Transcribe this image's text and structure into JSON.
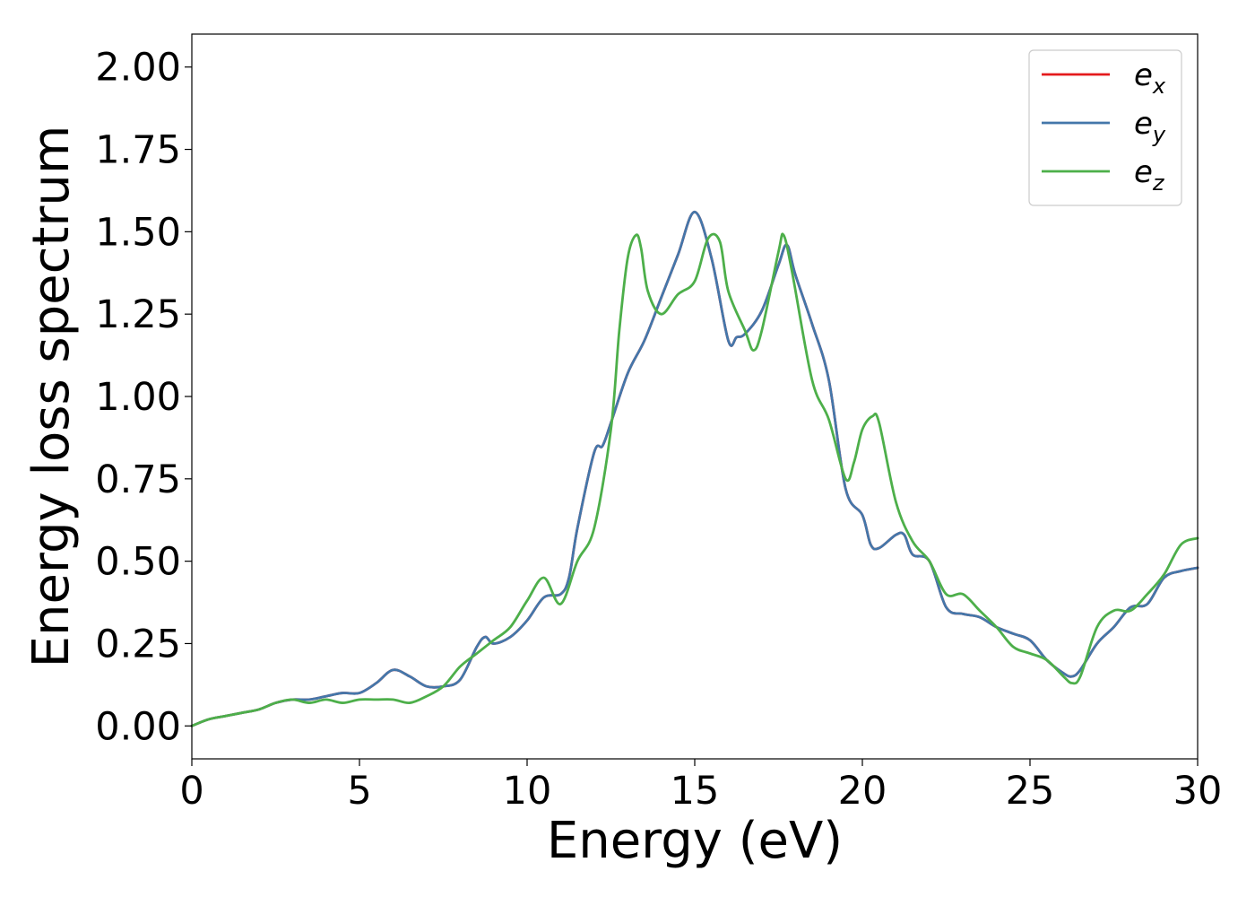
{
  "chart_data": {
    "type": "line",
    "xlabel": "Energy (eV)",
    "ylabel": "Energy loss spectrum",
    "xlim": [
      0,
      30
    ],
    "ylim": [
      -0.1,
      2.1
    ],
    "xticks": [
      0,
      5,
      10,
      15,
      20,
      25,
      30
    ],
    "xtick_labels": [
      "0",
      "5",
      "10",
      "15",
      "20",
      "25",
      "30"
    ],
    "yticks": [
      0,
      0.25,
      0.5,
      0.75,
      1.0,
      1.25,
      1.5,
      1.75,
      2.0
    ],
    "ytick_labels": [
      "0.00",
      "0.25",
      "0.50",
      "0.75",
      "1.00",
      "1.25",
      "1.50",
      "1.75",
      "2.00"
    ],
    "grid": false,
    "legend_position": "top-right",
    "series": [
      {
        "name": "e",
        "sub": "x",
        "color": "#e41a1c",
        "x": [
          0,
          0.5,
          1,
          1.5,
          2,
          2.5,
          3,
          3.5,
          4,
          4.5,
          5,
          5.5,
          6,
          6.5,
          7,
          7.5,
          8,
          8.5,
          8.75,
          9,
          9.5,
          10,
          10.5,
          11,
          11.25,
          11.5,
          12,
          12.25,
          12.5,
          13,
          13.5,
          14,
          14.5,
          15,
          15.5,
          16,
          16.25,
          16.5,
          17,
          17.5,
          17.75,
          18,
          18.5,
          19,
          19.5,
          20,
          20.25,
          20.5,
          21,
          21.25,
          21.5,
          22,
          22.5,
          23,
          23.5,
          24,
          24.5,
          25,
          25.5,
          26,
          26.25,
          26.5,
          27,
          27.5,
          28,
          28.5,
          29,
          29.5,
          30
        ],
        "values": [
          0.0,
          0.02,
          0.03,
          0.04,
          0.05,
          0.07,
          0.08,
          0.08,
          0.09,
          0.1,
          0.1,
          0.13,
          0.17,
          0.15,
          0.12,
          0.12,
          0.14,
          0.24,
          0.27,
          0.25,
          0.27,
          0.32,
          0.39,
          0.4,
          0.45,
          0.6,
          0.83,
          0.85,
          0.92,
          1.07,
          1.17,
          1.3,
          1.43,
          1.56,
          1.42,
          1.17,
          1.18,
          1.19,
          1.26,
          1.4,
          1.46,
          1.37,
          1.22,
          1.05,
          0.72,
          0.64,
          0.55,
          0.54,
          0.58,
          0.58,
          0.52,
          0.5,
          0.36,
          0.34,
          0.33,
          0.3,
          0.28,
          0.26,
          0.2,
          0.16,
          0.15,
          0.17,
          0.25,
          0.3,
          0.36,
          0.37,
          0.45,
          0.47,
          0.48
        ]
      },
      {
        "name": "e",
        "sub": "y",
        "color": "#4477aa",
        "x": [
          0,
          0.5,
          1,
          1.5,
          2,
          2.5,
          3,
          3.5,
          4,
          4.5,
          5,
          5.5,
          6,
          6.5,
          7,
          7.5,
          8,
          8.5,
          8.75,
          9,
          9.5,
          10,
          10.5,
          11,
          11.25,
          11.5,
          12,
          12.25,
          12.5,
          13,
          13.5,
          14,
          14.5,
          15,
          15.5,
          16,
          16.25,
          16.5,
          17,
          17.5,
          17.75,
          18,
          18.5,
          19,
          19.5,
          20,
          20.25,
          20.5,
          21,
          21.25,
          21.5,
          22,
          22.5,
          23,
          23.5,
          24,
          24.5,
          25,
          25.5,
          26,
          26.25,
          26.5,
          27,
          27.5,
          28,
          28.5,
          29,
          29.5,
          30
        ],
        "values": [
          0.0,
          0.02,
          0.03,
          0.04,
          0.05,
          0.07,
          0.08,
          0.08,
          0.09,
          0.1,
          0.1,
          0.13,
          0.17,
          0.15,
          0.12,
          0.12,
          0.14,
          0.24,
          0.27,
          0.25,
          0.27,
          0.32,
          0.39,
          0.4,
          0.45,
          0.6,
          0.83,
          0.85,
          0.92,
          1.07,
          1.17,
          1.3,
          1.43,
          1.56,
          1.42,
          1.17,
          1.18,
          1.19,
          1.26,
          1.4,
          1.46,
          1.37,
          1.22,
          1.05,
          0.72,
          0.64,
          0.55,
          0.54,
          0.58,
          0.58,
          0.52,
          0.5,
          0.36,
          0.34,
          0.33,
          0.3,
          0.28,
          0.26,
          0.2,
          0.16,
          0.15,
          0.17,
          0.25,
          0.3,
          0.36,
          0.37,
          0.45,
          0.47,
          0.48
        ]
      },
      {
        "name": "e",
        "sub": "z",
        "color": "#4daf4a",
        "x": [
          0,
          0.5,
          1,
          1.5,
          2,
          2.5,
          3,
          3.5,
          4,
          4.5,
          5,
          5.5,
          6,
          6.5,
          7,
          7.5,
          8,
          8.5,
          9,
          9.5,
          10,
          10.5,
          11,
          11.5,
          12,
          12.5,
          12.75,
          13,
          13.25,
          13.4,
          13.6,
          14,
          14.5,
          15,
          15.4,
          15.75,
          16,
          16.5,
          16.75,
          17,
          17.5,
          17.65,
          17.9,
          18.5,
          19,
          19.5,
          19.75,
          20,
          20.3,
          20.5,
          21,
          21.5,
          22,
          22.5,
          23,
          23.5,
          24,
          24.5,
          25,
          25.5,
          26,
          26.25,
          26.5,
          27,
          27.5,
          28,
          28.5,
          29,
          29.5,
          30
        ],
        "values": [
          0.0,
          0.02,
          0.03,
          0.04,
          0.05,
          0.07,
          0.08,
          0.07,
          0.08,
          0.07,
          0.08,
          0.08,
          0.08,
          0.07,
          0.09,
          0.12,
          0.18,
          0.22,
          0.26,
          0.3,
          0.38,
          0.45,
          0.37,
          0.5,
          0.6,
          0.9,
          1.2,
          1.42,
          1.49,
          1.45,
          1.32,
          1.25,
          1.31,
          1.35,
          1.48,
          1.47,
          1.32,
          1.2,
          1.14,
          1.2,
          1.44,
          1.49,
          1.38,
          1.05,
          0.93,
          0.75,
          0.8,
          0.9,
          0.94,
          0.92,
          0.68,
          0.56,
          0.5,
          0.4,
          0.4,
          0.35,
          0.3,
          0.24,
          0.22,
          0.2,
          0.15,
          0.13,
          0.15,
          0.3,
          0.35,
          0.35,
          0.4,
          0.46,
          0.55,
          0.57
        ]
      }
    ]
  }
}
